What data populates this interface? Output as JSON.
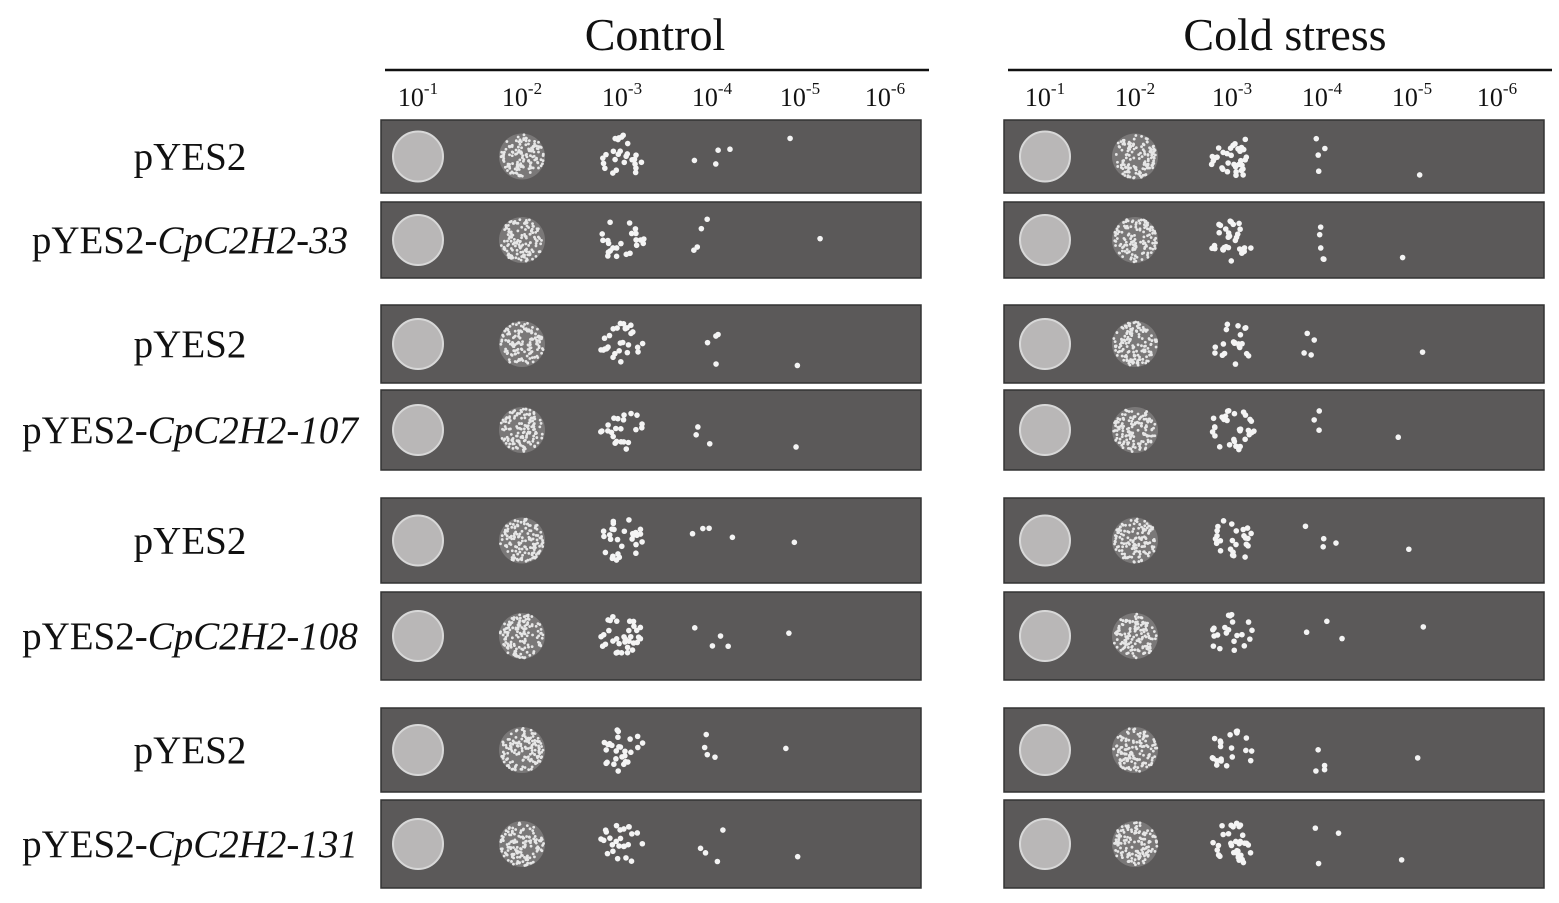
{
  "panels": [
    {
      "title": "Control",
      "dilutions": [
        {
          "base": "10",
          "exponent": "-1"
        },
        {
          "base": "10",
          "exponent": "-2"
        },
        {
          "base": "10",
          "exponent": "-3"
        },
        {
          "base": "10",
          "exponent": "-4"
        },
        {
          "base": "10",
          "exponent": "-5"
        },
        {
          "base": "10",
          "exponent": "-6"
        }
      ]
    },
    {
      "title": "Cold stress",
      "dilutions": [
        {
          "base": "10",
          "exponent": "-1"
        },
        {
          "base": "10",
          "exponent": "-2"
        },
        {
          "base": "10",
          "exponent": "-3"
        },
        {
          "base": "10",
          "exponent": "-4"
        },
        {
          "base": "10",
          "exponent": "-5"
        },
        {
          "base": "10",
          "exponent": "-6"
        }
      ]
    }
  ],
  "rows": [
    {
      "label": "pYES2"
    },
    {
      "prefix": "pYES2-",
      "gene": "CpC2H2-33"
    },
    {
      "label": "pYES2"
    },
    {
      "prefix": "pYES2-",
      "gene": "CpC2H2-107"
    },
    {
      "label": "pYES2"
    },
    {
      "prefix": "pYES2-",
      "gene": "CpC2H2-108"
    },
    {
      "label": "pYES2"
    },
    {
      "prefix": "pYES2-",
      "gene": "CpC2H2-131"
    }
  ]
}
